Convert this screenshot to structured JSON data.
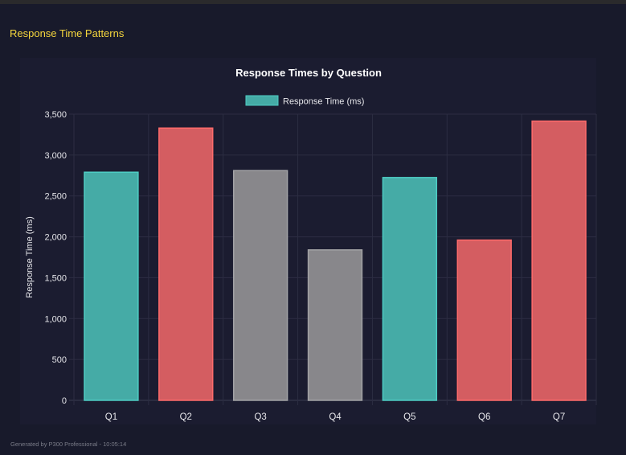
{
  "section_title": "Response Time Patterns",
  "footer": "Generated by P300 Professional - 10:05:14",
  "chart_data": {
    "type": "bar",
    "title": "Response Times by Question",
    "categories": [
      "Q1",
      "Q2",
      "Q3",
      "Q4",
      "Q5",
      "Q6",
      "Q7"
    ],
    "series": [
      {
        "name": "Response Time (ms)",
        "values": [
          2790,
          3330,
          2810,
          1840,
          2725,
          1960,
          3415
        ]
      }
    ],
    "bar_colors": [
      "teal",
      "red",
      "gray",
      "gray",
      "teal",
      "red",
      "red"
    ],
    "colors": {
      "teal": {
        "fill": "#45aba6",
        "border": "#4ecdc4"
      },
      "red": {
        "fill": "#d45d61",
        "border": "#ff6b6b"
      },
      "gray": {
        "fill": "#88878b",
        "border": "#a3a3a6"
      }
    },
    "xlabel": "",
    "ylabel": "Response Time (ms)",
    "ylim": [
      0,
      3500
    ],
    "yticks": [
      "0",
      "500",
      "1,000",
      "1,500",
      "2,000",
      "2,500",
      "3,000",
      "3,500"
    ],
    "grid": true,
    "legend": "top"
  }
}
